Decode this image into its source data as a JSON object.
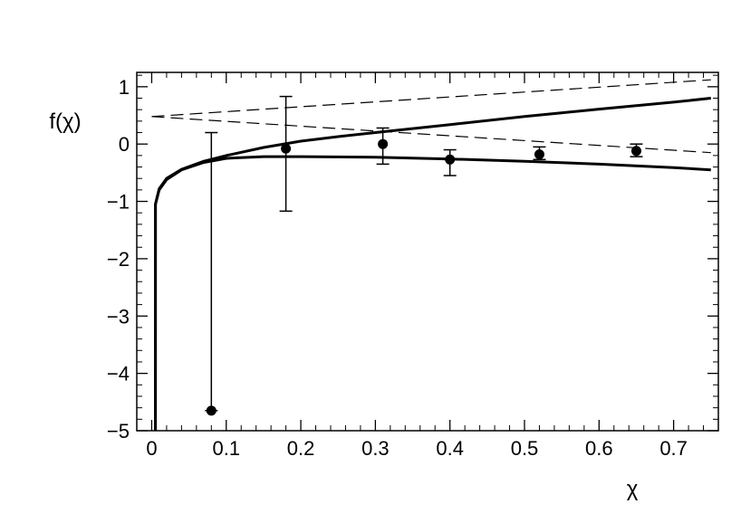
{
  "chart_data": {
    "type": "scatter",
    "title": "",
    "xlabel": "χ",
    "ylabel": "f(χ)",
    "xlim": [
      -0.02,
      0.76
    ],
    "ylim": [
      -5,
      1.25
    ],
    "grid": false,
    "x_ticks": [
      0,
      0.1,
      0.2,
      0.3,
      0.4,
      0.5,
      0.6,
      0.7
    ],
    "x_tick_labels": [
      "0",
      "0.1",
      "0.2",
      "0.3",
      "0.4",
      "0.5",
      "0.6",
      "0.7"
    ],
    "y_ticks": [
      1,
      0,
      -1,
      -2,
      -3,
      -4,
      -5
    ],
    "y_tick_labels": [
      "1",
      "0",
      "−1",
      "−2",
      "−3",
      "−4",
      "−5"
    ],
    "points": [
      {
        "x": 0.08,
        "y": -4.65,
        "err_low": -4.65,
        "err_high": 0.2
      },
      {
        "x": 0.18,
        "y": -0.08,
        "err_low": -1.17,
        "err_high": 0.83
      },
      {
        "x": 0.31,
        "y": 0.0,
        "err_low": -0.35,
        "err_high": 0.28
      },
      {
        "x": 0.4,
        "y": -0.27,
        "err_low": -0.55,
        "err_high": -0.1
      },
      {
        "x": 0.52,
        "y": -0.18,
        "err_low": -0.27,
        "err_high": -0.05
      },
      {
        "x": 0.65,
        "y": -0.12,
        "err_low": -0.22,
        "err_high": 0.0
      }
    ],
    "curves": [
      {
        "style": "solid",
        "x": [
          0.005,
          0.01,
          0.02,
          0.04,
          0.07,
          0.1,
          0.15,
          0.2,
          0.25,
          0.3,
          0.4,
          0.5,
          0.6,
          0.7,
          0.75
        ],
        "y": [
          -1.05,
          -0.78,
          -0.6,
          -0.44,
          -0.3,
          -0.2,
          -0.06,
          0.05,
          0.13,
          0.2,
          0.34,
          0.48,
          0.61,
          0.73,
          0.8
        ]
      },
      {
        "style": "solid",
        "x": [
          0.005,
          0.01,
          0.02,
          0.04,
          0.07,
          0.1,
          0.15,
          0.2,
          0.3,
          0.4,
          0.5,
          0.6,
          0.7,
          0.75
        ],
        "y": [
          -1.05,
          -0.8,
          -0.62,
          -0.45,
          -0.32,
          -0.25,
          -0.22,
          -0.22,
          -0.23,
          -0.26,
          -0.3,
          -0.35,
          -0.41,
          -0.45
        ]
      },
      {
        "style": "dashed",
        "x": [
          0,
          0.75
        ],
        "y": [
          0.48,
          1.12
        ]
      },
      {
        "style": "dashed",
        "x": [
          0,
          0.75
        ],
        "y": [
          0.48,
          -0.15
        ]
      }
    ]
  }
}
